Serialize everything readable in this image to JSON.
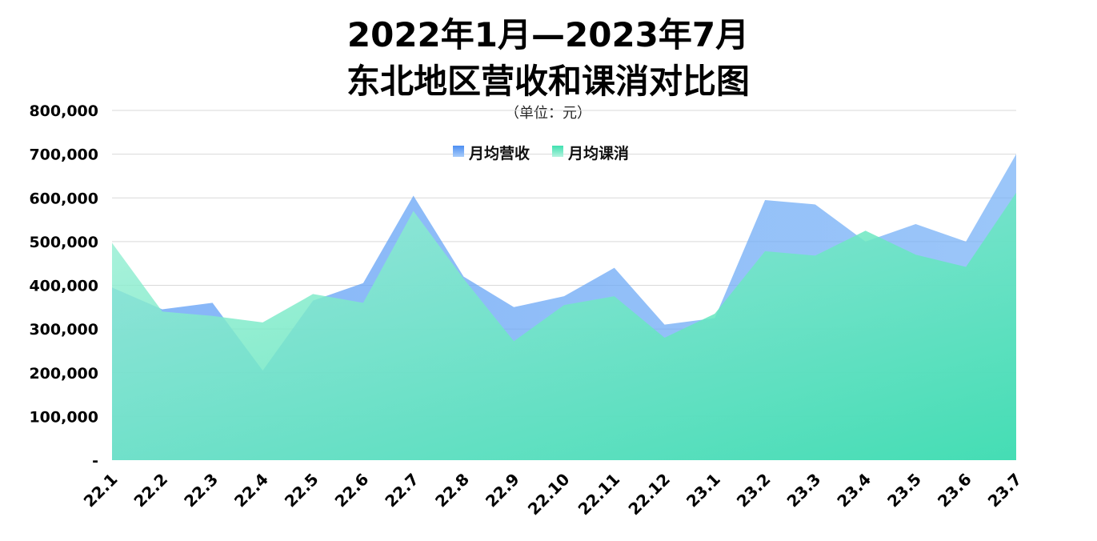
{
  "chart_data": {
    "type": "area",
    "title_line1": "2022年1月—2023年7月",
    "title_line2": "东北地区营收和课消对比图",
    "subtitle": "（单位：元）",
    "categories": [
      "22.1",
      "22.2",
      "22.3",
      "22.4",
      "22.5",
      "22.6",
      "22.7",
      "22.8",
      "22.9",
      "22.10",
      "22.11",
      "22.12",
      "23.1",
      "23.2",
      "23.3",
      "23.4",
      "23.5",
      "23.6",
      "23.7"
    ],
    "series": [
      {
        "name": "月均营收",
        "color": "#5a9cf5",
        "values": [
          395000,
          345000,
          360000,
          205000,
          365000,
          405000,
          605000,
          420000,
          350000,
          375000,
          440000,
          310000,
          325000,
          595000,
          585000,
          500000,
          540000,
          500000,
          700000
        ]
      },
      {
        "name": "月均课消",
        "color": "#3fe0b0",
        "values": [
          497000,
          340000,
          330000,
          315000,
          380000,
          360000,
          570000,
          415000,
          272000,
          355000,
          375000,
          280000,
          335000,
          478000,
          468000,
          525000,
          470000,
          442000,
          612000
        ]
      }
    ],
    "ylim": [
      0,
      800000
    ],
    "yticks": [
      {
        "value": 0,
        "label": "-"
      },
      {
        "value": 100000,
        "label": "100,000"
      },
      {
        "value": 200000,
        "label": "200,000"
      },
      {
        "value": 300000,
        "label": "300,000"
      },
      {
        "value": 400000,
        "label": "400,000"
      },
      {
        "value": 500000,
        "label": "500,000"
      },
      {
        "value": 600000,
        "label": "600,000"
      },
      {
        "value": 700000,
        "label": "700,000"
      },
      {
        "value": 800000,
        "label": "800,000"
      }
    ],
    "grid": true,
    "legend_position": "top-center"
  }
}
